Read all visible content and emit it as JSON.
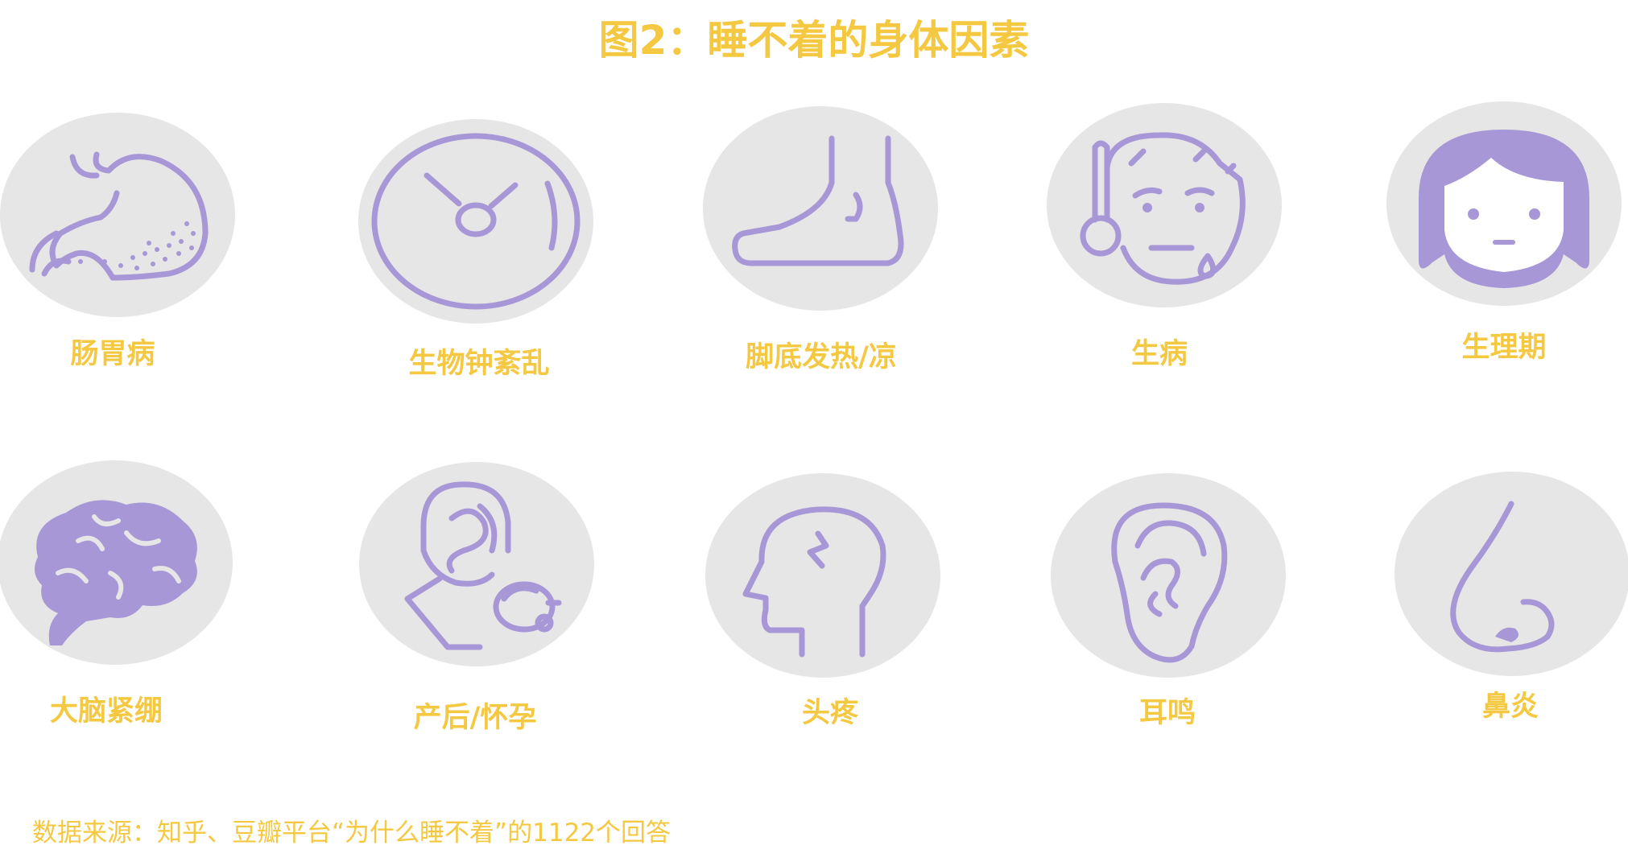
{
  "title": "图2：睡不着的身体因素",
  "items": [
    {
      "label": "肠胃病",
      "icon": "stomach-icon"
    },
    {
      "label": "生物钟紊乱",
      "icon": "clock-icon"
    },
    {
      "label": "脚底发热/凉",
      "icon": "foot-icon"
    },
    {
      "label": "生病",
      "icon": "sick-face-thermometer-icon"
    },
    {
      "label": "生理期",
      "icon": "girl-face-icon"
    },
    {
      "label": "大脑紧绷",
      "icon": "brain-icon"
    },
    {
      "label": "产后/怀孕",
      "icon": "mother-baby-icon"
    },
    {
      "label": "头疼",
      "icon": "headache-icon"
    },
    {
      "label": "耳鸣",
      "icon": "ear-icon"
    },
    {
      "label": "鼻炎",
      "icon": "nose-icon"
    }
  ],
  "source": "数据来源：知乎、豆瓣平台“为什么睡不着”的1122个回答",
  "colors": {
    "accent": "#F5C842",
    "icon": "#A797D6",
    "circle": "#E6E6E6"
  }
}
